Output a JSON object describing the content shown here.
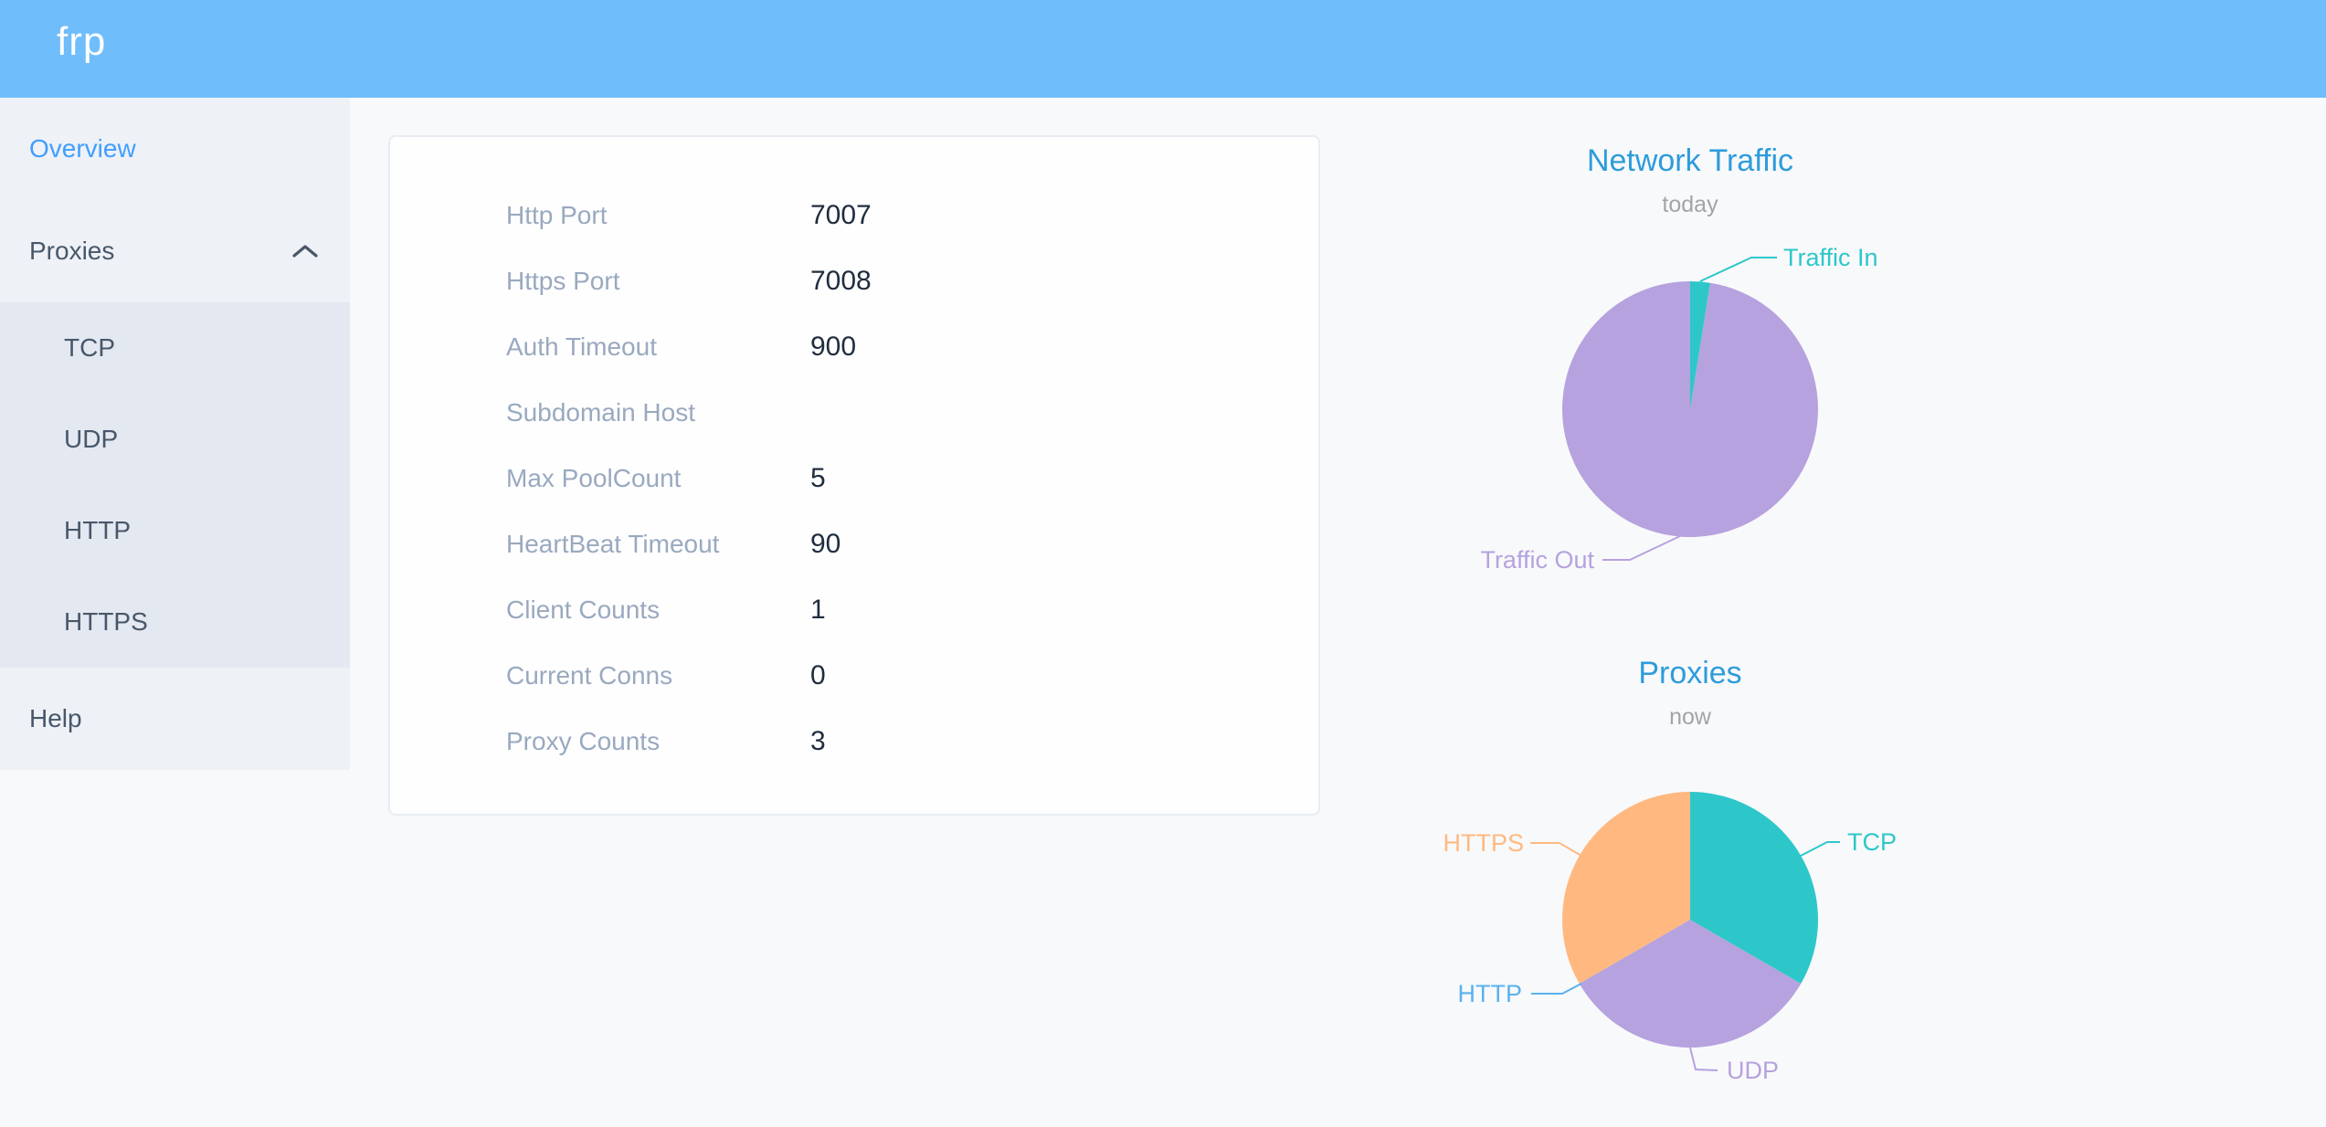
{
  "header": {
    "logo": "frp"
  },
  "colors": {
    "header_bg": "#6fbdfb",
    "menu_active": "#409eff",
    "menu_text": "#48576a",
    "chart_title": "#2d9cdb",
    "chart_subtext": "#a0a4a8",
    "card_label": "#99a9bf",
    "card_value": "#1f2d3d"
  },
  "sidebar": {
    "items": [
      {
        "label": "Overview",
        "active": true
      },
      {
        "label": "Proxies",
        "expanded": true,
        "icon": "chevron-up",
        "children": [
          {
            "label": "TCP"
          },
          {
            "label": "UDP"
          },
          {
            "label": "HTTP"
          },
          {
            "label": "HTTPS"
          }
        ]
      },
      {
        "label": "Help"
      }
    ]
  },
  "overview_card": {
    "rows": [
      {
        "label": "Http Port",
        "value": "7007"
      },
      {
        "label": "Https Port",
        "value": "7008"
      },
      {
        "label": "Auth Timeout",
        "value": "900"
      },
      {
        "label": "Subdomain Host",
        "value": ""
      },
      {
        "label": "Max PoolCount",
        "value": "5"
      },
      {
        "label": "HeartBeat Timeout",
        "value": "90"
      },
      {
        "label": "Client Counts",
        "value": "1"
      },
      {
        "label": "Current Conns",
        "value": "0"
      },
      {
        "label": "Proxy Counts",
        "value": "3"
      }
    ]
  },
  "chart_data": [
    {
      "type": "pie",
      "title": "Network Traffic",
      "subtitle": "today",
      "legend_position": "callout-labels",
      "slices": [
        {
          "label": "Traffic In",
          "value": 2.5,
          "color": "#2ec7c9",
          "percent_est": "2.5%"
        },
        {
          "label": "Traffic Out",
          "value": 97.5,
          "color": "#b6a2de",
          "percent_est": "97.5%"
        }
      ]
    },
    {
      "type": "pie",
      "title": "Proxies",
      "subtitle": "now",
      "legend_position": "callout-labels",
      "slices": [
        {
          "label": "TCP",
          "value": 1,
          "color": "#2ec7c9"
        },
        {
          "label": "UDP",
          "value": 1,
          "color": "#b6a2de"
        },
        {
          "label": "HTTP",
          "value": 0,
          "color": "#5ab1ef"
        },
        {
          "label": "HTTPS",
          "value": 1,
          "color": "#ffb980"
        }
      ]
    }
  ]
}
